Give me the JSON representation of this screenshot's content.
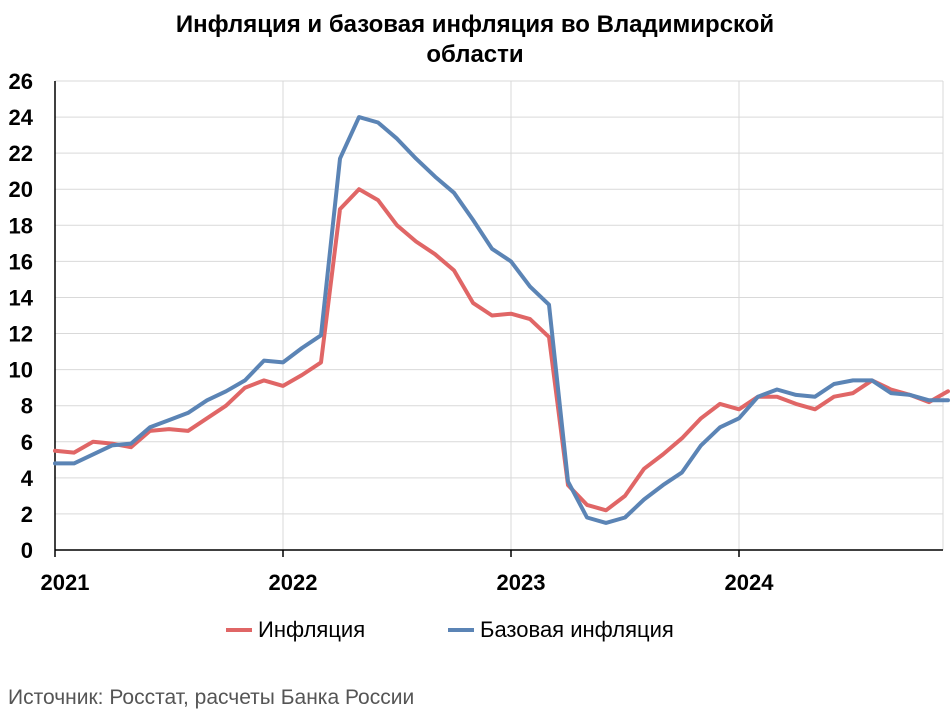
{
  "title_line1": "Инфляция и базовая инфляция во Владимирской",
  "title_line2": "области",
  "source": "Источник: Росстат, расчеты Банка России",
  "legend": [
    {
      "label": "Инфляция",
      "color": "#e06666"
    },
    {
      "label": "Базовая инфляция",
      "color": "#5b84b5"
    }
  ],
  "chart_data": {
    "type": "line",
    "x_start": "2021-01",
    "x_labels": [
      "2021",
      "2022",
      "2023",
      "2024"
    ],
    "ylim": [
      0,
      26
    ],
    "yticks": [
      "0",
      "2",
      "4",
      "6",
      "8",
      "10",
      "12",
      "14",
      "16",
      "18",
      "20",
      "22",
      "24",
      "26"
    ],
    "grid": true,
    "series": [
      {
        "name": "Инфляция",
        "color": "#e06666",
        "values": [
          5.5,
          5.4,
          6.0,
          5.9,
          5.7,
          6.6,
          6.7,
          6.6,
          7.3,
          8.0,
          9.0,
          9.4,
          9.1,
          9.7,
          10.4,
          18.9,
          20.0,
          19.4,
          18.0,
          17.1,
          16.4,
          15.5,
          13.7,
          13.0,
          13.1,
          12.8,
          11.8,
          3.6,
          2.5,
          2.2,
          3.0,
          4.5,
          5.3,
          6.2,
          7.3,
          8.1,
          7.8,
          8.5,
          8.5,
          8.1,
          7.8,
          8.5,
          8.7,
          9.4,
          8.9,
          8.6,
          8.2,
          8.8
        ]
      },
      {
        "name": "Базовая инфляция",
        "color": "#5b84b5",
        "values": [
          4.8,
          4.8,
          5.3,
          5.8,
          5.9,
          6.8,
          7.2,
          7.6,
          8.3,
          8.8,
          9.4,
          10.5,
          10.4,
          11.2,
          11.9,
          21.7,
          24.0,
          23.7,
          22.8,
          21.7,
          20.7,
          19.8,
          18.3,
          16.7,
          16.0,
          14.6,
          13.6,
          3.8,
          1.8,
          1.5,
          1.8,
          2.8,
          3.6,
          4.3,
          5.8,
          6.8,
          7.3,
          8.5,
          8.9,
          8.6,
          8.5,
          9.2,
          9.4,
          9.4,
          8.7,
          8.6,
          8.3,
          8.3
        ]
      }
    ]
  }
}
